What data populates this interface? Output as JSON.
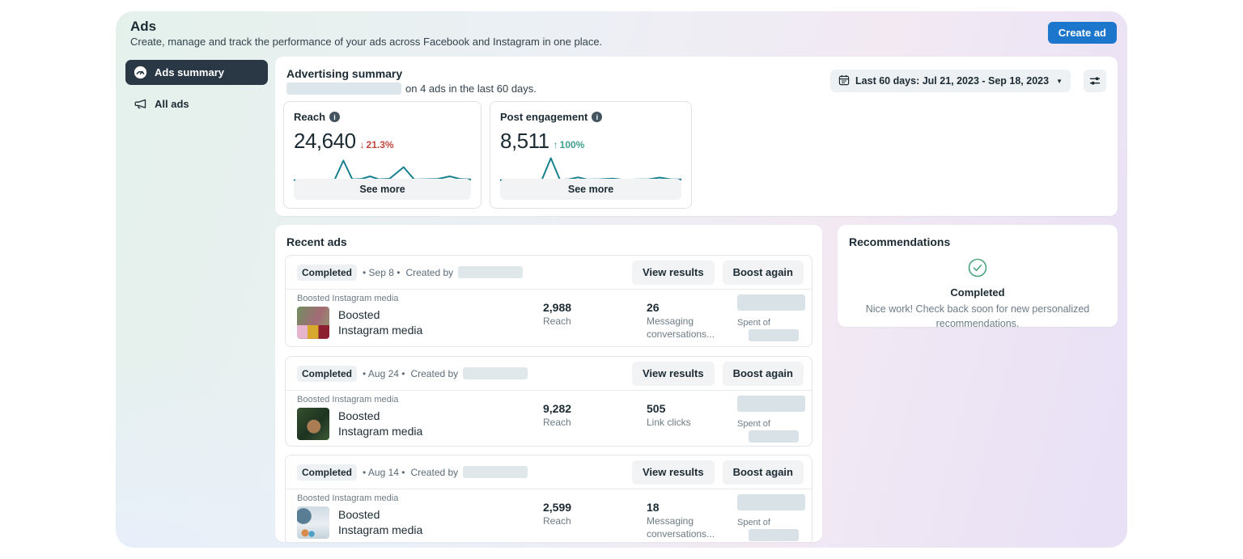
{
  "colors": {
    "accent_blue": "#1b76cc",
    "sparkline_teal": "#17808d",
    "negative_red": "#c0473c",
    "positive_green": "#3f9e8d",
    "sidebar_active_bg": "#2a3846"
  },
  "header": {
    "title": "Ads",
    "subtitle": "Create, manage and track the performance of your ads across Facebook and Instagram in one place.",
    "create_ad_label": "Create ad"
  },
  "sidebar": {
    "items": [
      {
        "label": "Ads summary",
        "icon": "gauge-icon",
        "active": true
      },
      {
        "label": "All ads",
        "icon": "megaphone-icon",
        "active": false
      }
    ]
  },
  "advertising_summary": {
    "heading": "Advertising summary",
    "subtext": "on 4 ads in the last 60 days.",
    "date_range_label": "Last 60 days: Jul 21, 2023 - Sep 18, 2023",
    "metrics": [
      {
        "label": "Reach",
        "value": "24,640",
        "delta_arrow": "↓",
        "delta": "21.3%",
        "direction": "down",
        "see_more": "See more"
      },
      {
        "label": "Post engagement",
        "value": "8,511",
        "delta_arrow": "↑",
        "delta": "100%",
        "direction": "up",
        "see_more": "See more"
      }
    ]
  },
  "recent_ads": {
    "heading": "Recent ads",
    "ads": [
      {
        "status": "Completed",
        "date_text": "• Sep 8 •",
        "created_by": "Created by",
        "view_results": "View results",
        "boost_again": "Boost again",
        "media_type": "Boosted Instagram media",
        "title_line1": "Boosted",
        "title_line2": "Instagram media",
        "metric1_value": "2,988",
        "metric1_label": "Reach",
        "metric2_value": "26",
        "metric2_label": "Messaging conversations...",
        "spent_label": "Spent of"
      },
      {
        "status": "Completed",
        "date_text": "• Aug 24 •",
        "created_by": "Created by",
        "view_results": "View results",
        "boost_again": "Boost again",
        "media_type": "Boosted Instagram media",
        "title_line1": "Boosted",
        "title_line2": "Instagram media",
        "metric1_value": "9,282",
        "metric1_label": "Reach",
        "metric2_value": "505",
        "metric2_label": "Link clicks",
        "spent_label": "Spent of"
      },
      {
        "status": "Completed",
        "date_text": "• Aug 14 •",
        "created_by": "Created by",
        "view_results": "View results",
        "boost_again": "Boost again",
        "media_type": "Boosted Instagram media",
        "title_line1": "Boosted",
        "title_line2": "Instagram media",
        "metric1_value": "2,599",
        "metric1_label": "Reach",
        "metric2_value": "18",
        "metric2_label": "Messaging conversations...",
        "spent_label": "Spent of"
      }
    ]
  },
  "recommendations": {
    "heading": "Recommendations",
    "status": "Completed",
    "message": "Nice work! Check back soon for new personalized recommendations."
  },
  "chart_data": [
    {
      "type": "line",
      "title": "Reach sparkline (last 60 days)",
      "series": [
        {
          "name": "Reach",
          "points_percent": [
            [
              0,
              4
            ],
            [
              10,
              4
            ],
            [
              18,
              4
            ],
            [
              23,
              5
            ],
            [
              28,
              85
            ],
            [
              33,
              8
            ],
            [
              38,
              9
            ],
            [
              43,
              20
            ],
            [
              48,
              8
            ],
            [
              54,
              10
            ],
            [
              62,
              58
            ],
            [
              68,
              7
            ],
            [
              74,
              8
            ],
            [
              81,
              9
            ],
            [
              88,
              20
            ],
            [
              94,
              9
            ],
            [
              100,
              7
            ]
          ]
        }
      ],
      "xlabel": "",
      "ylabel": "",
      "grid": false,
      "legend": false
    },
    {
      "type": "line",
      "title": "Post engagement sparkline (last 60 days)",
      "series": [
        {
          "name": "Post engagement",
          "points_percent": [
            [
              0,
              4
            ],
            [
              10,
              4
            ],
            [
              18,
              4
            ],
            [
              23,
              5
            ],
            [
              28,
              95
            ],
            [
              33,
              6
            ],
            [
              38,
              8
            ],
            [
              43,
              16
            ],
            [
              48,
              7
            ],
            [
              55,
              8
            ],
            [
              62,
              11
            ],
            [
              68,
              6
            ],
            [
              75,
              7
            ],
            [
              82,
              8
            ],
            [
              88,
              15
            ],
            [
              94,
              8
            ],
            [
              100,
              7
            ]
          ]
        }
      ],
      "xlabel": "",
      "ylabel": "",
      "grid": false,
      "legend": false
    }
  ]
}
